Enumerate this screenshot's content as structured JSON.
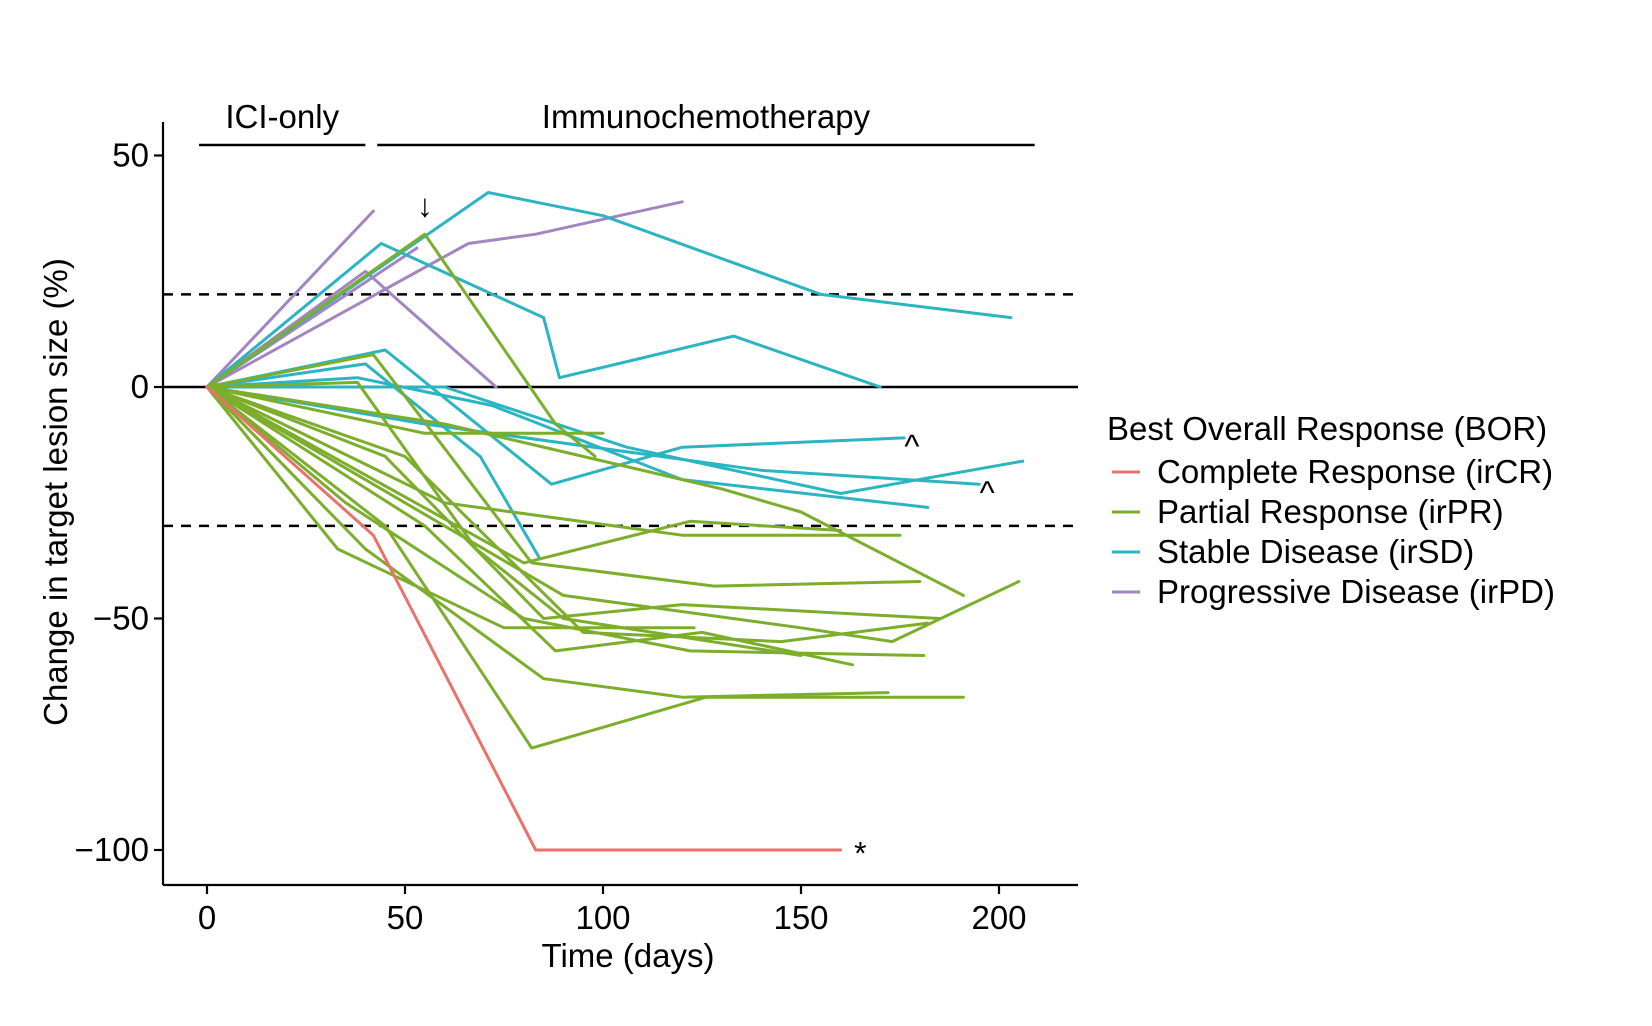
{
  "chart_data": {
    "type": "line",
    "xlabel": "Time (days)",
    "ylabel": "Change in target lesion size (%)",
    "xlim": [
      -10,
      220
    ],
    "ylim": [
      -108,
      57
    ],
    "x_ticks": [
      0,
      50,
      100,
      150,
      200
    ],
    "x_tick_labels": [
      "0",
      "50",
      "100",
      "150",
      "200"
    ],
    "y_ticks": [
      50,
      0,
      -50,
      -100
    ],
    "y_tick_labels": [
      "50",
      "0",
      "−50",
      "−100"
    ],
    "reference_lines": [
      {
        "y": 0,
        "style": "solid"
      },
      {
        "y": 20,
        "style": "dashed"
      },
      {
        "y": -30,
        "style": "dashed"
      }
    ],
    "phases": [
      {
        "label": "ICI-only",
        "start": -2,
        "end": 40
      },
      {
        "label": "Immunochemotherapy",
        "start": 43,
        "end": 209
      }
    ],
    "legend": {
      "title": "Best Overall Response (BOR)",
      "position": "right",
      "entries": [
        {
          "key": "CR",
          "label": "Complete Response (irCR)",
          "color": "#E8736C"
        },
        {
          "key": "PR",
          "label": "Partial Response (irPR)",
          "color": "#7CAE2C"
        },
        {
          "key": "SD",
          "label": "Stable Disease (irSD)",
          "color": "#2BB5C3"
        },
        {
          "key": "PD",
          "label": "Progressive Disease (irPD)",
          "color": "#A385C2"
        }
      ]
    },
    "series": [
      {
        "group": "PD",
        "points": [
          [
            0,
            0
          ],
          [
            42,
            38
          ]
        ]
      },
      {
        "group": "PD",
        "points": [
          [
            0,
            0
          ],
          [
            53,
            30
          ]
        ]
      },
      {
        "group": "PD",
        "points": [
          [
            0,
            0
          ],
          [
            40,
            25
          ],
          [
            73,
            0
          ]
        ]
      },
      {
        "group": "PD",
        "points": [
          [
            0,
            0
          ],
          [
            66,
            31
          ],
          [
            83,
            33
          ],
          [
            120,
            40
          ]
        ]
      },
      {
        "group": "SD",
        "points": [
          [
            0,
            0
          ],
          [
            44,
            31
          ],
          [
            85,
            15
          ],
          [
            89,
            2
          ],
          [
            133,
            11
          ],
          [
            170,
            0
          ]
        ]
      },
      {
        "group": "SD",
        "points": [
          [
            0,
            0
          ],
          [
            71,
            42
          ],
          [
            100,
            37
          ],
          [
            155,
            20
          ],
          [
            203,
            15
          ]
        ]
      },
      {
        "group": "SD",
        "points": [
          [
            0,
            0
          ],
          [
            45,
            8
          ],
          [
            87,
            -21
          ],
          [
            120,
            -13
          ],
          [
            176,
            -11
          ]
        ]
      },
      {
        "group": "SD",
        "points": [
          [
            0,
            0
          ],
          [
            40,
            5
          ],
          [
            69,
            -15
          ],
          [
            84,
            -37
          ]
        ]
      },
      {
        "group": "SD",
        "points": [
          [
            0,
            0
          ],
          [
            38,
            2
          ],
          [
            72,
            -4
          ],
          [
            120,
            -20
          ],
          [
            182,
            -26
          ]
        ]
      },
      {
        "group": "SD",
        "points": [
          [
            0,
            0
          ],
          [
            55,
            -8
          ],
          [
            140,
            -18
          ],
          [
            195,
            -21
          ]
        ]
      },
      {
        "group": "SD",
        "points": [
          [
            0,
            0
          ],
          [
            60,
            0
          ],
          [
            106,
            -13
          ],
          [
            160,
            -23
          ],
          [
            206,
            -16
          ]
        ]
      },
      {
        "group": "PR",
        "points": [
          [
            0,
            0
          ],
          [
            55,
            33
          ],
          [
            88,
            -8
          ],
          [
            98,
            -15
          ]
        ]
      },
      {
        "group": "PR",
        "points": [
          [
            0,
            0
          ],
          [
            42,
            7
          ],
          [
            82,
            -38
          ],
          [
            128,
            -43
          ],
          [
            180,
            -42
          ]
        ]
      },
      {
        "group": "PR",
        "points": [
          [
            0,
            0
          ],
          [
            38,
            1
          ],
          [
            68,
            -35
          ],
          [
            90,
            -50
          ],
          [
            150,
            -58
          ]
        ]
      },
      {
        "group": "PR",
        "points": [
          [
            0,
            0
          ],
          [
            55,
            -10
          ],
          [
            100,
            -10
          ]
        ]
      },
      {
        "group": "PR",
        "points": [
          [
            0,
            0
          ],
          [
            60,
            -8
          ],
          [
            130,
            -22
          ],
          [
            150,
            -27
          ],
          [
            191,
            -45
          ]
        ]
      },
      {
        "group": "PR",
        "points": [
          [
            0,
            0
          ],
          [
            45,
            -15
          ],
          [
            85,
            -50
          ],
          [
            120,
            -47
          ],
          [
            185,
            -50
          ]
        ]
      },
      {
        "group": "PR",
        "points": [
          [
            0,
            0
          ],
          [
            50,
            -25
          ],
          [
            90,
            -45
          ],
          [
            150,
            -52
          ],
          [
            173,
            -55
          ],
          [
            205,
            -42
          ]
        ]
      },
      {
        "group": "PR",
        "points": [
          [
            0,
            0
          ],
          [
            60,
            -25
          ],
          [
            120,
            -32
          ],
          [
            175,
            -32
          ]
        ]
      },
      {
        "group": "PR",
        "points": [
          [
            0,
            0
          ],
          [
            80,
            -38
          ],
          [
            122,
            -29
          ],
          [
            160,
            -31
          ]
        ]
      },
      {
        "group": "PR",
        "points": [
          [
            0,
            0
          ],
          [
            45,
            -30
          ],
          [
            82,
            -78
          ],
          [
            126,
            -67
          ],
          [
            191,
            -67
          ]
        ]
      },
      {
        "group": "PR",
        "points": [
          [
            0,
            0
          ],
          [
            55,
            -30
          ],
          [
            88,
            -57
          ],
          [
            125,
            -53
          ],
          [
            163,
            -60
          ]
        ]
      },
      {
        "group": "PR",
        "points": [
          [
            0,
            0
          ],
          [
            40,
            -35
          ],
          [
            85,
            -63
          ],
          [
            120,
            -67
          ],
          [
            172,
            -66
          ]
        ]
      },
      {
        "group": "PR",
        "points": [
          [
            0,
            0
          ],
          [
            35,
            -25
          ],
          [
            80,
            -50
          ],
          [
            122,
            -57
          ],
          [
            181,
            -58
          ]
        ]
      },
      {
        "group": "PR",
        "points": [
          [
            0,
            0
          ],
          [
            33,
            -35
          ],
          [
            75,
            -52
          ],
          [
            123,
            -52
          ]
        ]
      },
      {
        "group": "PR",
        "points": [
          [
            0,
            0
          ],
          [
            50,
            -15
          ],
          [
            95,
            -53
          ],
          [
            145,
            -55
          ],
          [
            182,
            -51
          ]
        ]
      },
      {
        "group": "CR",
        "points": [
          [
            0,
            0
          ],
          [
            42,
            -32
          ],
          [
            83,
            -100
          ],
          [
            160,
            -100
          ]
        ]
      }
    ],
    "annotations": [
      {
        "text": "↓",
        "x": 55,
        "y": 39
      },
      {
        "text": "^",
        "x": 178,
        "y": -13
      },
      {
        "text": "^",
        "x": 197,
        "y": -23
      },
      {
        "text": "*",
        "x": 165,
        "y": -101
      }
    ]
  }
}
